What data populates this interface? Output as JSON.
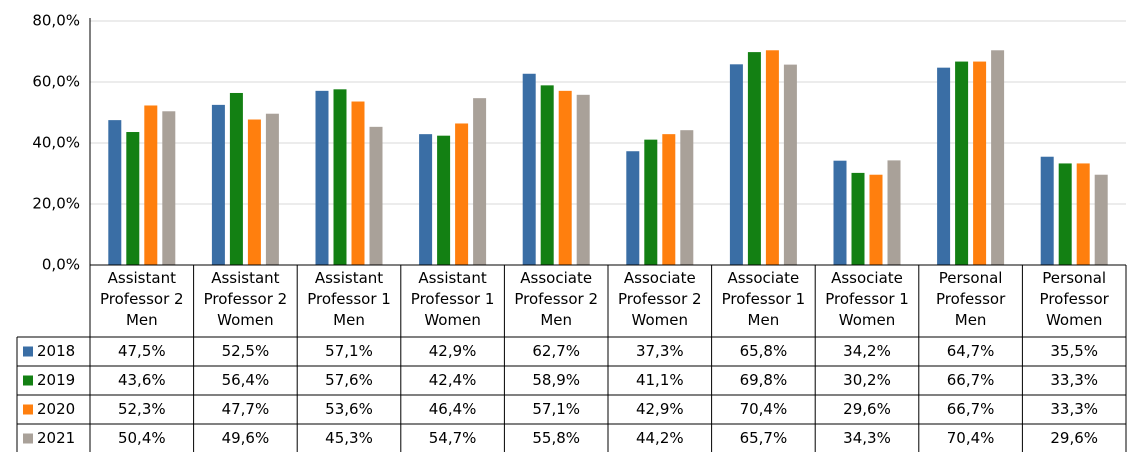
{
  "chart_data": {
    "type": "bar",
    "categories": [
      "Assistant Professor 2 Men",
      "Assistant Professor 2 Women",
      "Assistant Professor 1 Men",
      "Assistant Professor 1 Women",
      "Associate Professor 2 Men",
      "Associate Professor 2 Women",
      "Associate Professor 1 Men",
      "Associate Professor 1 Women",
      "Personal Professor Men",
      "Personal Professor Women"
    ],
    "series": [
      {
        "name": "2018",
        "color": "#3a6ea5",
        "values": [
          47.5,
          52.5,
          57.1,
          42.9,
          62.7,
          37.3,
          65.8,
          34.2,
          64.7,
          35.5
        ],
        "value_labels": [
          "47,5%",
          "52,5%",
          "57,1%",
          "42,9%",
          "62,7%",
          "37,3%",
          "65,8%",
          "34,2%",
          "64,7%",
          "35,5%"
        ]
      },
      {
        "name": "2019",
        "color": "#138013",
        "values": [
          43.6,
          56.4,
          57.6,
          42.4,
          58.9,
          41.1,
          69.8,
          30.2,
          66.7,
          33.3
        ],
        "value_labels": [
          "43,6%",
          "56,4%",
          "57,6%",
          "42,4%",
          "58,9%",
          "41,1%",
          "69,8%",
          "30,2%",
          "66,7%",
          "33,3%"
        ]
      },
      {
        "name": "2020",
        "color": "#ff7f0e",
        "values": [
          52.3,
          47.7,
          53.6,
          46.4,
          57.1,
          42.9,
          70.4,
          29.6,
          66.7,
          33.3
        ],
        "value_labels": [
          "52,3%",
          "47,7%",
          "53,6%",
          "46,4%",
          "57,1%",
          "42,9%",
          "70,4%",
          "29,6%",
          "66,7%",
          "33,3%"
        ]
      },
      {
        "name": "2021",
        "color": "#a9a199",
        "values": [
          50.4,
          49.6,
          45.3,
          54.7,
          55.8,
          44.2,
          65.7,
          34.3,
          70.4,
          29.6
        ],
        "value_labels": [
          "50,4%",
          "49,6%",
          "45,3%",
          "54,7%",
          "55,8%",
          "44,2%",
          "65,7%",
          "34,3%",
          "70,4%",
          "29,6%"
        ]
      }
    ],
    "ylim": [
      0,
      80
    ],
    "yticks": [
      {
        "value": 0,
        "label": "0,0%"
      },
      {
        "value": 20,
        "label": "20,0%"
      },
      {
        "value": 40,
        "label": "40,0%"
      },
      {
        "value": 60,
        "label": "60,0%"
      },
      {
        "value": 80,
        "label": "80,0%"
      }
    ],
    "grid": true
  }
}
